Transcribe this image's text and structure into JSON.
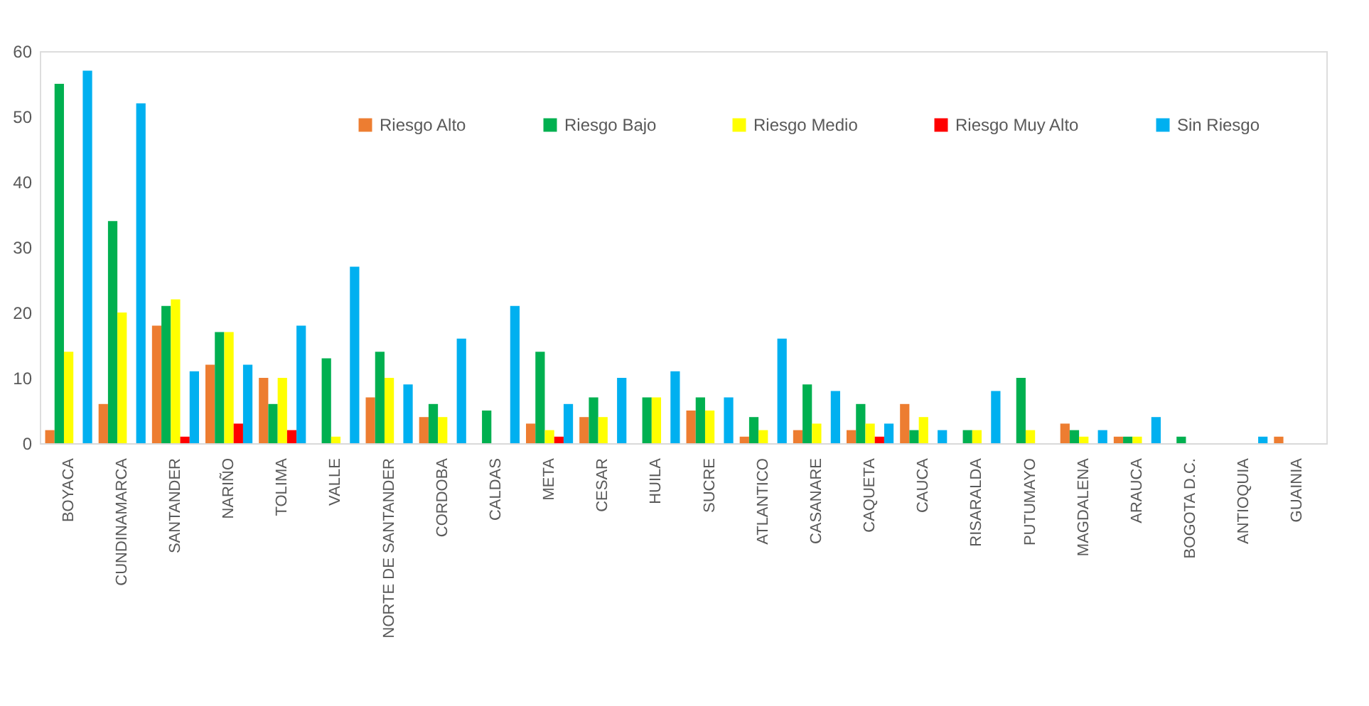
{
  "chart_data": {
    "type": "bar",
    "categories": [
      "BOYACA",
      "CUNDINAMARCA",
      "SANTANDER",
      "NARIÑO",
      "TOLIMA",
      "VALLE",
      "NORTE DE SANTANDER",
      "CORDOBA",
      "CALDAS",
      "META",
      "CESAR",
      "HUILA",
      "SUCRE",
      "ATLANTICO",
      "CASANARE",
      "CAQUETA",
      "CAUCA",
      "RISARALDA",
      "PUTUMAYO",
      "MAGDALENA",
      "ARAUCA",
      "BOGOTA D.C.",
      "ANTIOQUIA",
      "GUAINIA"
    ],
    "series": [
      {
        "name": "Riesgo Alto",
        "color": "#ed7d31",
        "values": [
          2,
          6,
          18,
          12,
          10,
          null,
          7,
          4,
          null,
          3,
          4,
          null,
          5,
          1,
          2,
          2,
          6,
          null,
          null,
          3,
          1,
          null,
          null,
          1
        ]
      },
      {
        "name": "Riesgo Bajo",
        "color": "#00b050",
        "values": [
          55,
          34,
          21,
          17,
          6,
          13,
          14,
          6,
          5,
          14,
          7,
          7,
          7,
          4,
          9,
          6,
          2,
          2,
          10,
          2,
          1,
          1,
          null,
          null
        ]
      },
      {
        "name": "Riesgo Medio",
        "color": "#ffff00",
        "values": [
          14,
          20,
          22,
          17,
          10,
          1,
          10,
          4,
          null,
          2,
          4,
          7,
          5,
          2,
          3,
          3,
          4,
          2,
          2,
          1,
          1,
          null,
          null,
          null
        ]
      },
      {
        "name": "Riesgo Muy Alto",
        "color": "#ff0000",
        "values": [
          null,
          null,
          1,
          3,
          2,
          null,
          null,
          null,
          null,
          1,
          null,
          null,
          null,
          null,
          null,
          1,
          null,
          null,
          null,
          null,
          null,
          null,
          null,
          null
        ]
      },
      {
        "name": "Sin Riesgo",
        "color": "#00b0f0",
        "values": [
          57,
          52,
          11,
          12,
          18,
          27,
          9,
          16,
          21,
          6,
          10,
          11,
          7,
          16,
          8,
          3,
          2,
          8,
          null,
          2,
          4,
          null,
          1,
          null
        ]
      }
    ],
    "ylim": [
      0,
      60
    ],
    "yticks": [
      0,
      10,
      20,
      30,
      40,
      50,
      60
    ],
    "legend": "top right"
  }
}
